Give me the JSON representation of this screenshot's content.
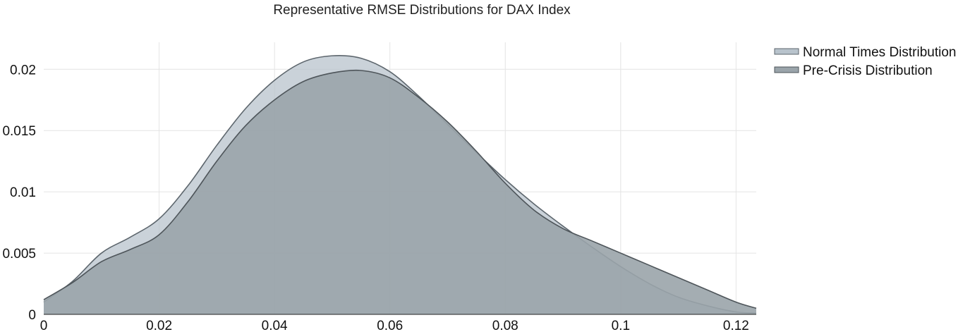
{
  "chart_data": {
    "type": "area",
    "title": "Representative RMSE Distributions for DAX Index",
    "xlabel": "",
    "ylabel": "",
    "xlim": [
      0,
      0.1235
    ],
    "ylim": [
      0,
      0.0222
    ],
    "xticks": [
      0,
      0.02,
      0.04,
      0.06,
      0.08,
      0.1,
      0.12
    ],
    "xtick_labels": [
      "0",
      "0.02",
      "0.04",
      "0.06",
      "0.08",
      "0.1",
      "0.12"
    ],
    "yticks": [
      0,
      0.005,
      0.01,
      0.015,
      0.02
    ],
    "ytick_labels": [
      "0",
      "0.005",
      "0.01",
      "0.015",
      "0.02"
    ],
    "grid": true,
    "legend": "top-right",
    "x": [
      0,
      0.005,
      0.01,
      0.015,
      0.02,
      0.025,
      0.03,
      0.035,
      0.04,
      0.045,
      0.05,
      0.055,
      0.06,
      0.065,
      0.07,
      0.075,
      0.08,
      0.085,
      0.09,
      0.095,
      0.1,
      0.105,
      0.11,
      0.115,
      0.12,
      0.1235
    ],
    "series": [
      {
        "name": "Normal Times Distribution",
        "fill": "#b8c3cc",
        "stroke": "#5d666d",
        "values": [
          0.001,
          0.0027,
          0.005,
          0.0063,
          0.0078,
          0.0105,
          0.0138,
          0.0168,
          0.0191,
          0.0206,
          0.0211,
          0.0209,
          0.0198,
          0.0178,
          0.0155,
          0.0132,
          0.011,
          0.009,
          0.0072,
          0.0055,
          0.0039,
          0.0025,
          0.0014,
          0.0007,
          0.0002,
          0.0001
        ]
      },
      {
        "name": "Pre-Crisis Distribution",
        "fill": "#9aa4aa",
        "stroke": "#4e555a",
        "values": [
          0.0012,
          0.0026,
          0.0043,
          0.0053,
          0.0065,
          0.0092,
          0.0125,
          0.0154,
          0.0175,
          0.019,
          0.0197,
          0.0199,
          0.0193,
          0.0177,
          0.0157,
          0.0133,
          0.0107,
          0.0085,
          0.007,
          0.006,
          0.005,
          0.004,
          0.003,
          0.002,
          0.001,
          0.0005
        ]
      }
    ]
  }
}
